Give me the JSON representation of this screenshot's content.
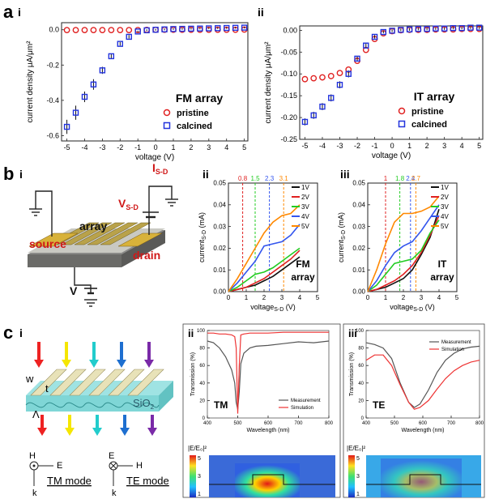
{
  "colors": {
    "pristine": "#e02020",
    "calcined": "#2233dd",
    "v1": "#111111",
    "v2": "#e02020",
    "v3": "#22cc22",
    "v4": "#3355ee",
    "v5": "#ff8800",
    "measurement": "#555555",
    "simulation": "#ee3333"
  },
  "panel_labels": {
    "a": "a",
    "a_i": "i",
    "a_ii": "ii",
    "b": "b",
    "b_i": "i",
    "b_ii": "ii",
    "b_iii": "iii",
    "c": "c",
    "c_i": "i",
    "c_ii": "ii",
    "c_iii": "iii"
  },
  "schematic_b": {
    "array": "array",
    "source": "source",
    "drain": "drain",
    "isd_main": "I",
    "isd_sub": "S-D",
    "vsd_main": "V",
    "vsd_sub": "S-D",
    "vg": "V"
  },
  "schematic_c": {
    "w": "w",
    "t": "t",
    "lambda": "Λ",
    "sio2_main": "SiO",
    "sio2_sub": "2",
    "tm_h": "H",
    "tm_e": "E",
    "tm_k": "k",
    "tm_mode": "TM mode",
    "te_e": "E",
    "te_h": "H",
    "te_k": "k",
    "te_mode": "TE mode",
    "arrow_colors": [
      "#ee2222",
      "#f5e600",
      "#22cccc",
      "#1e6fd0",
      "#7a2aa8"
    ]
  },
  "field_maps": {
    "colorbar_label": "|E/E₀|²",
    "tick_top": "5",
    "tick_mid": "3",
    "tick_bot": "1"
  },
  "chart_data": [
    {
      "id": "a-i",
      "type": "scatter",
      "title": "FM array",
      "xlabel": "voltage (V)",
      "ylabel": "current density μA/μm²",
      "xlim": [
        -5.3,
        5.2
      ],
      "ylim": [
        -0.63,
        0.04
      ],
      "xticks": [
        -5,
        -4,
        -3,
        -2,
        -1,
        0,
        1,
        2,
        3,
        4,
        5
      ],
      "yticks": [
        0.0,
        -0.2,
        -0.4,
        -0.6
      ],
      "ytick_labels": [
        "0.0",
        "-0.2",
        "-0.4",
        "-0.6"
      ],
      "legend_position": "bottom-right",
      "series": [
        {
          "name": "pristine",
          "marker": "circle",
          "x": [
            -5,
            -4.5,
            -4,
            -3.5,
            -3,
            -2.5,
            -2,
            -1.5,
            -1,
            -0.5,
            0,
            0.5,
            1,
            1.5,
            2,
            2.5,
            3,
            3.5,
            4,
            4.5,
            5
          ],
          "y": [
            -0.002,
            -0.002,
            -0.002,
            -0.002,
            -0.002,
            -0.002,
            -0.002,
            -0.002,
            -0.002,
            -0.001,
            0.0,
            0.0,
            0.0,
            0.0,
            0.0,
            0.0,
            0.0,
            0.0,
            0.0,
            0.0,
            0.001
          ]
        },
        {
          "name": "calcined",
          "marker": "square",
          "x": [
            -5,
            -4.5,
            -4,
            -3.5,
            -3,
            -2.5,
            -2,
            -1.5,
            -1,
            -0.5,
            0,
            0.5,
            1,
            1.5,
            2,
            2.5,
            3,
            3.5,
            4,
            4.5,
            5
          ],
          "y": [
            -0.55,
            -0.47,
            -0.38,
            -0.31,
            -0.23,
            -0.15,
            -0.08,
            -0.04,
            -0.01,
            -0.003,
            0.0,
            0.002,
            0.004,
            0.005,
            0.006,
            0.007,
            0.008,
            0.009,
            0.01,
            0.011,
            0.012
          ],
          "yerr": [
            0.04,
            0.04,
            0.03,
            0.03,
            0.02,
            0.015,
            0.01,
            0.01,
            0.005,
            0.005,
            0.005,
            0.005,
            0.005,
            0.005,
            0.005,
            0.005,
            0.005,
            0.005,
            0.005,
            0.005,
            0.005
          ]
        }
      ]
    },
    {
      "id": "a-ii",
      "type": "scatter",
      "title": "IT array",
      "xlabel": "voltage (V)",
      "ylabel": "current density μA/μm²",
      "xlim": [
        -5.3,
        5.2
      ],
      "ylim": [
        -0.25,
        0.01
      ],
      "xticks": [
        -5,
        -4,
        -3,
        -2,
        -1,
        0,
        1,
        2,
        3,
        4,
        5
      ],
      "yticks": [
        0.0,
        -0.05,
        -0.1,
        -0.15,
        -0.2,
        -0.25
      ],
      "ytick_labels": [
        "0.00",
        "-0.05",
        "-0.10",
        "-0.15",
        "-0.20",
        "-0.25"
      ],
      "legend_position": "bottom-right",
      "series": [
        {
          "name": "pristine",
          "marker": "circle",
          "x": [
            -5,
            -4.5,
            -4,
            -3.5,
            -3,
            -2.5,
            -2,
            -1.5,
            -1,
            -0.5,
            0,
            0.5,
            1,
            1.5,
            2,
            2.5,
            3,
            3.5,
            4,
            4.5,
            5
          ],
          "y": [
            -0.112,
            -0.11,
            -0.108,
            -0.105,
            -0.098,
            -0.09,
            -0.07,
            -0.045,
            -0.02,
            -0.007,
            -0.002,
            0.0,
            0.001,
            0.001,
            0.001,
            0.002,
            0.002,
            0.002,
            0.003,
            0.003,
            0.003
          ]
        },
        {
          "name": "calcined",
          "marker": "square",
          "x": [
            -5,
            -4.5,
            -4,
            -3.5,
            -3,
            -2.5,
            -2,
            -1.5,
            -1,
            -0.5,
            0,
            0.5,
            1,
            1.5,
            2,
            2.5,
            3,
            3.5,
            4,
            4.5,
            5
          ],
          "y": [
            -0.21,
            -0.195,
            -0.175,
            -0.155,
            -0.125,
            -0.1,
            -0.065,
            -0.035,
            -0.015,
            -0.004,
            -0.001,
            0.001,
            0.002,
            0.003,
            0.003,
            0.004,
            0.004,
            0.005,
            0.005,
            0.006,
            0.006
          ],
          "yerr": [
            0.008,
            0.008,
            0.008,
            0.008,
            0.008,
            0.008,
            0.005,
            0.005,
            0.004,
            0.003,
            0.003,
            0.003,
            0.003,
            0.003,
            0.003,
            0.003,
            0.003,
            0.003,
            0.003,
            0.003,
            0.003
          ]
        }
      ]
    },
    {
      "id": "b-ii",
      "type": "line",
      "title": "FM array",
      "xlabel_main": "voltage",
      "xlabel_sub": "S-D",
      "xlabel_unit": " (V)",
      "ylabel_main": "current",
      "ylabel_sub": "S-D",
      "ylabel_unit": " (mA)",
      "xlim": [
        0,
        5
      ],
      "ylim": [
        0,
        0.05
      ],
      "xticks": [
        0,
        1,
        2,
        3,
        4,
        5
      ],
      "yticks": [
        0.0,
        0.01,
        0.02,
        0.03,
        0.04,
        0.05
      ],
      "ytick_labels": [
        "0.00",
        "0.01",
        "0.02",
        "0.03",
        "0.04",
        "0.05"
      ],
      "legend_position": "top-right",
      "thresholds": [
        {
          "x": 0.8,
          "label": "0.8",
          "series": "2V"
        },
        {
          "x": 1.5,
          "label": "1.5",
          "series": "3V"
        },
        {
          "x": 2.3,
          "label": "2.3",
          "series": "4V"
        },
        {
          "x": 3.1,
          "label": "3.1",
          "series": "5V"
        }
      ],
      "series": [
        {
          "name": "1V",
          "x": [
            0,
            0.5,
            1,
            1.5,
            2,
            2.5,
            3,
            3.5,
            4
          ],
          "y": [
            0,
            0.001,
            0.002,
            0.003,
            0.005,
            0.007,
            0.01,
            0.013,
            0.016
          ]
        },
        {
          "name": "2V",
          "x": [
            0,
            0.5,
            1,
            1.5,
            2,
            2.5,
            3,
            3.5,
            4
          ],
          "y": [
            0,
            0.001,
            0.002,
            0.004,
            0.006,
            0.009,
            0.012,
            0.015,
            0.019
          ]
        },
        {
          "name": "3V",
          "x": [
            0,
            0.5,
            1,
            1.5,
            2,
            2.5,
            3,
            3.5,
            4
          ],
          "y": [
            0,
            0.002,
            0.005,
            0.008,
            0.009,
            0.011,
            0.014,
            0.017,
            0.02
          ]
        },
        {
          "name": "4V",
          "x": [
            0,
            0.5,
            1,
            1.5,
            2,
            2.5,
            3,
            3.5,
            4
          ],
          "y": [
            0,
            0.004,
            0.009,
            0.014,
            0.021,
            0.022,
            0.023,
            0.026,
            0.031
          ]
        },
        {
          "name": "5V",
          "x": [
            0,
            0.5,
            1,
            1.5,
            2,
            2.5,
            3,
            3.5,
            4
          ],
          "y": [
            0,
            0.006,
            0.013,
            0.02,
            0.027,
            0.032,
            0.035,
            0.036,
            0.04
          ]
        }
      ]
    },
    {
      "id": "b-iii",
      "type": "line",
      "title": "IT array",
      "xlabel_main": "voltage",
      "xlabel_sub": "S-D",
      "xlabel_unit": " (V)",
      "ylabel_main": "current",
      "ylabel_sub": "S-D",
      "ylabel_unit": " (mA)",
      "xlim": [
        0,
        5
      ],
      "ylim": [
        0,
        0.05
      ],
      "xticks": [
        0,
        1,
        2,
        3,
        4,
        5
      ],
      "yticks": [
        0.0,
        0.01,
        0.02,
        0.03,
        0.04,
        0.05
      ],
      "ytick_labels": [
        "0.00",
        "0.01",
        "0.02",
        "0.03",
        "0.04",
        "0.05"
      ],
      "legend_position": "top-right",
      "thresholds": [
        {
          "x": 1.0,
          "label": "1",
          "series": "2V"
        },
        {
          "x": 1.8,
          "label": "1.8",
          "series": "3V"
        },
        {
          "x": 2.4,
          "label": "2.4",
          "series": "4V"
        },
        {
          "x": 2.7,
          "label": "2.7",
          "series": "5V"
        }
      ],
      "series": [
        {
          "name": "1V",
          "x": [
            0,
            0.5,
            1,
            1.5,
            2,
            2.5,
            3,
            3.5,
            4
          ],
          "y": [
            0,
            0.001,
            0.002,
            0.004,
            0.006,
            0.01,
            0.017,
            0.025,
            0.038
          ]
        },
        {
          "name": "2V",
          "x": [
            0,
            0.5,
            1,
            1.5,
            2,
            2.5,
            3,
            3.5,
            4
          ],
          "y": [
            0,
            0.001,
            0.003,
            0.005,
            0.008,
            0.012,
            0.018,
            0.026,
            0.035
          ]
        },
        {
          "name": "3V",
          "x": [
            0,
            0.5,
            1,
            1.5,
            2,
            2.5,
            3,
            3.5,
            4
          ],
          "y": [
            0,
            0.003,
            0.008,
            0.013,
            0.014,
            0.015,
            0.019,
            0.027,
            0.033
          ]
        },
        {
          "name": "4V",
          "x": [
            0,
            0.5,
            1,
            1.5,
            2,
            2.5,
            3,
            3.5,
            4
          ],
          "y": [
            0,
            0.005,
            0.012,
            0.018,
            0.021,
            0.023,
            0.028,
            0.034,
            0.04
          ]
        },
        {
          "name": "5V",
          "x": [
            0,
            0.5,
            1,
            1.5,
            2,
            2.5,
            3,
            3.5,
            4
          ],
          "y": [
            0,
            0.01,
            0.022,
            0.032,
            0.036,
            0.036,
            0.037,
            0.039,
            0.044
          ]
        }
      ]
    },
    {
      "id": "c-ii",
      "type": "line",
      "title": "TM",
      "xlabel": "Wavelength (nm)",
      "ylabel": "Transmission (%)",
      "xlim": [
        400,
        800
      ],
      "ylim": [
        0,
        100
      ],
      "xticks": [
        400,
        500,
        600,
        700,
        800
      ],
      "yticks": [
        0,
        20,
        40,
        60,
        80,
        100
      ],
      "ytick_labels": [
        "0",
        "20",
        "40",
        "60",
        "80",
        "100"
      ],
      "legend_position": "bottom-right",
      "series": [
        {
          "name": "Measurement",
          "x": [
            400,
            420,
            440,
            460,
            480,
            490,
            495,
            500,
            505,
            510,
            520,
            540,
            560,
            600,
            650,
            700,
            750,
            800
          ],
          "y": [
            88,
            86,
            80,
            70,
            55,
            40,
            18,
            10,
            30,
            62,
            74,
            80,
            82,
            83,
            85,
            87,
            86,
            88
          ]
        },
        {
          "name": "Simulation",
          "x": [
            400,
            420,
            440,
            460,
            480,
            490,
            495,
            500,
            505,
            510,
            520,
            540,
            560,
            600,
            650,
            700,
            750,
            800
          ],
          "y": [
            97,
            97,
            96,
            96,
            95,
            93,
            80,
            5,
            60,
            95,
            96,
            97,
            97,
            97,
            98,
            98,
            98,
            98
          ]
        }
      ]
    },
    {
      "id": "c-iii",
      "type": "line",
      "title": "TE",
      "xlabel": "Wavelength (nm)",
      "ylabel": "Transmission (%)",
      "xlim": [
        400,
        800
      ],
      "ylim": [
        0,
        100
      ],
      "xticks": [
        400,
        500,
        600,
        700,
        800
      ],
      "yticks": [
        0,
        20,
        40,
        60,
        80,
        100
      ],
      "ytick_labels": [
        "0",
        "20",
        "40",
        "60",
        "80",
        "100"
      ],
      "legend_position": "top-right",
      "series": [
        {
          "name": "Measurement",
          "x": [
            400,
            430,
            460,
            490,
            520,
            550,
            570,
            590,
            620,
            650,
            680,
            710,
            740,
            770,
            800
          ],
          "y": [
            86,
            84,
            80,
            68,
            40,
            18,
            12,
            16,
            32,
            52,
            66,
            74,
            79,
            81,
            82
          ]
        },
        {
          "name": "Simulation",
          "x": [
            400,
            430,
            460,
            490,
            520,
            550,
            570,
            590,
            620,
            650,
            680,
            710,
            740,
            770,
            800
          ],
          "y": [
            66,
            72,
            72,
            60,
            38,
            18,
            10,
            12,
            20,
            33,
            45,
            54,
            60,
            64,
            66
          ]
        }
      ]
    }
  ]
}
